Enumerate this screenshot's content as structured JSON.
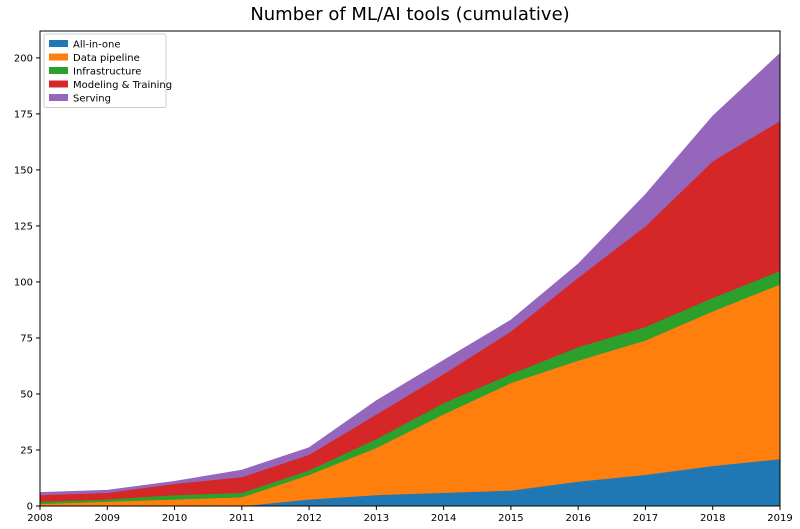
{
  "chart_data": {
    "type": "area",
    "stacked": true,
    "title": "Number of ML/AI tools (cumulative)",
    "xlabel": "",
    "ylabel": "",
    "x": [
      2008,
      2009,
      2010,
      2011,
      2012,
      2013,
      2014,
      2015,
      2016,
      2017,
      2018,
      2019
    ],
    "xlim": [
      2008,
      2019
    ],
    "ylim": [
      0,
      212
    ],
    "xticks": [
      "2008",
      "2009",
      "2010",
      "2011",
      "2012",
      "2013",
      "2014",
      "2015",
      "2016",
      "2017",
      "2018",
      "2019"
    ],
    "yticks": [
      "0",
      "25",
      "50",
      "75",
      "100",
      "125",
      "150",
      "175",
      "200"
    ],
    "grid": false,
    "legend_position": "top-left",
    "series": [
      {
        "name": "All-in-one",
        "color": "#1f77b4",
        "values": [
          0,
          0,
          0,
          0,
          3,
          5,
          6,
          7,
          11,
          14,
          18,
          21
        ]
      },
      {
        "name": "Data pipeline",
        "color": "#ff7f0e",
        "values": [
          1,
          2,
          3,
          4,
          11,
          21,
          35,
          48,
          54,
          60,
          69,
          78
        ]
      },
      {
        "name": "Infrastructure",
        "color": "#2ca02c",
        "values": [
          1,
          1,
          2,
          2,
          2,
          4,
          5,
          4,
          6,
          6,
          6,
          6
        ]
      },
      {
        "name": "Modeling & Training",
        "color": "#d62728",
        "values": [
          3,
          3,
          5,
          7,
          7,
          11,
          13,
          19,
          31,
          45,
          61,
          67
        ]
      },
      {
        "name": "Serving",
        "color": "#9467bd",
        "values": [
          1,
          1,
          1,
          3,
          3,
          6,
          6,
          5,
          6,
          14,
          20,
          30
        ]
      }
    ]
  }
}
